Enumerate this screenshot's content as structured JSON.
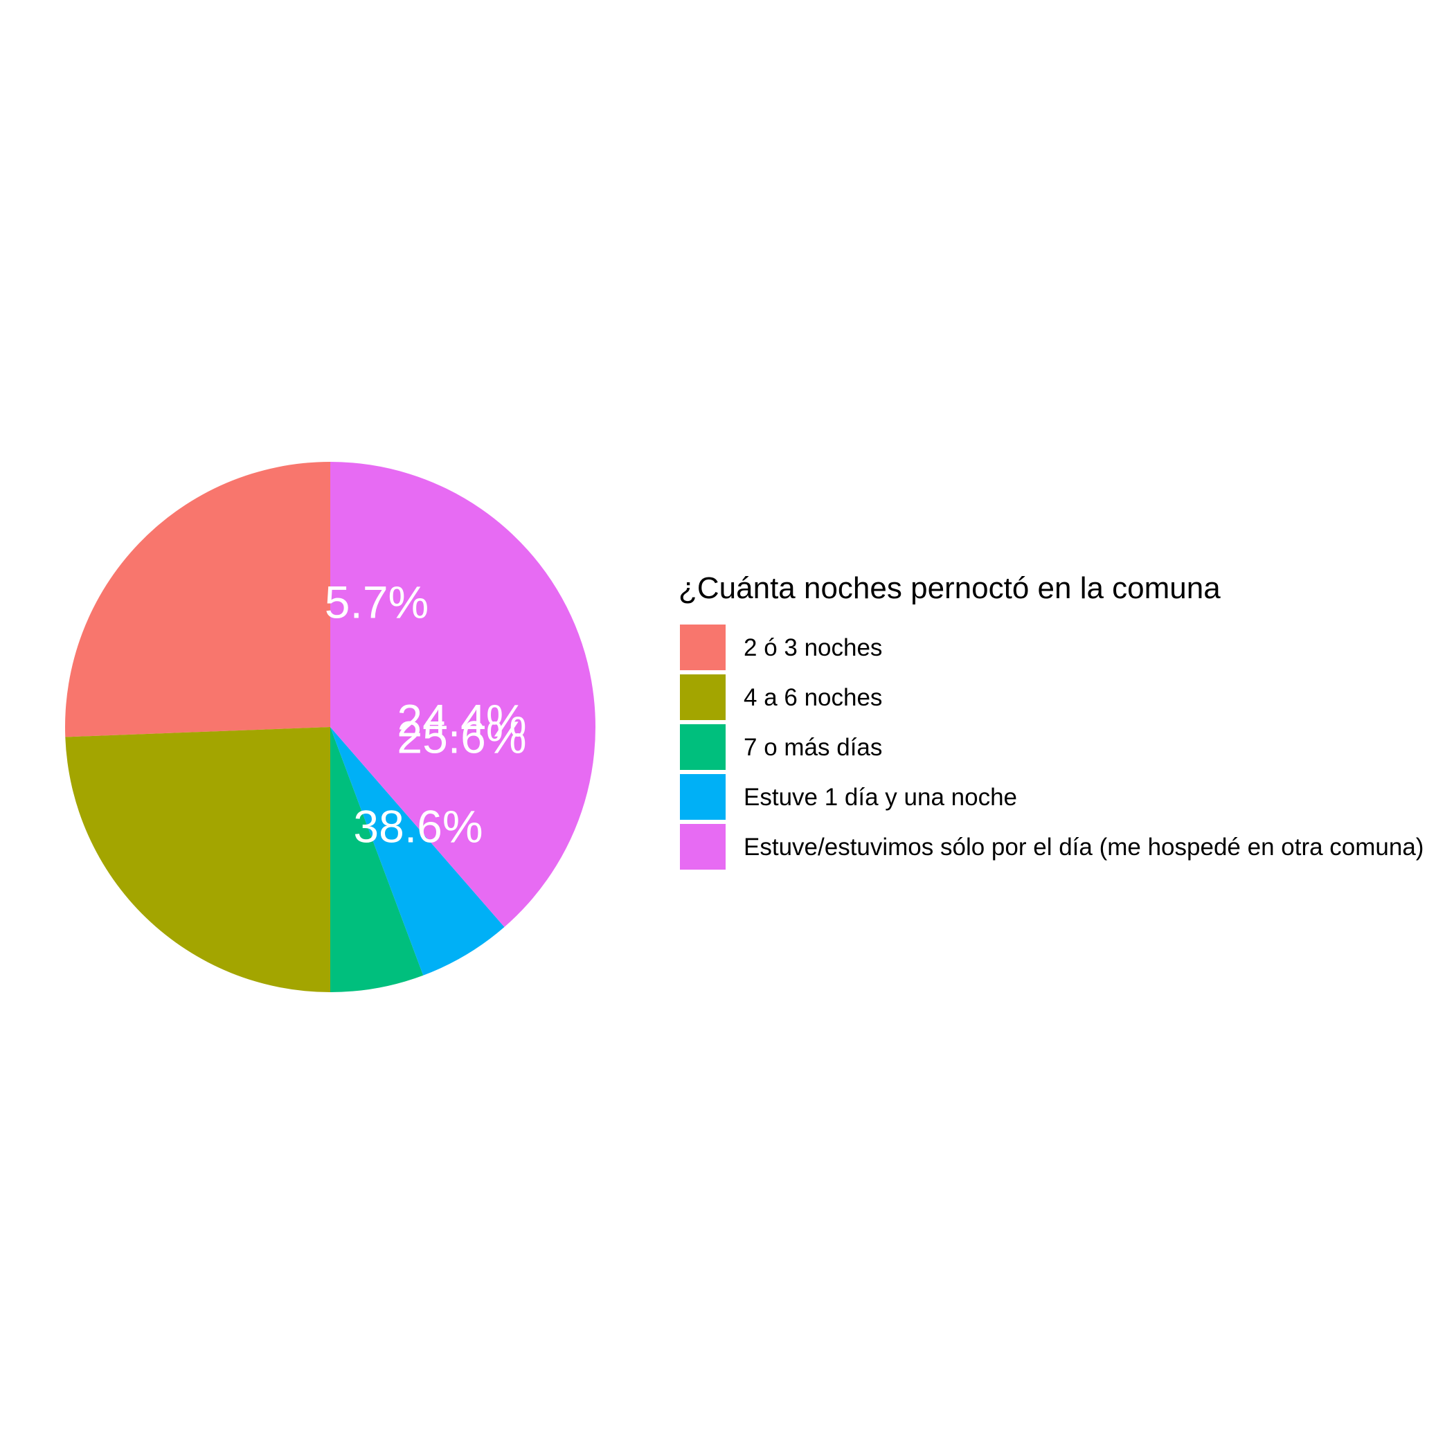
{
  "chart_data": {
    "type": "pie",
    "legend_title": "¿Cuánta noches pernoctó en la comuna",
    "legend_position": "right",
    "slices": [
      {
        "name": "2 ó 3 noches",
        "value": 25.6,
        "label": "25.6%",
        "color": "#F8766D"
      },
      {
        "name": "4 a 6 noches",
        "value": 24.4,
        "label": "24.4%",
        "color": "#A3A500"
      },
      {
        "name": "7 o más días",
        "value": 5.7,
        "label": "5.7%",
        "color": "#00BF7D"
      },
      {
        "name": "Estuve 1 día y una noche",
        "value": 5.7,
        "label": "5.7%",
        "color": "#00B0F6"
      },
      {
        "name": "Estuve/estuvimos sólo por el día (me hospedé en otra comuna)",
        "value": 38.6,
        "label": "38.6%",
        "color": "#E76BF3"
      }
    ],
    "value_labels": [
      "5.7%",
      "24.4%",
      "25.6%",
      "38.6%"
    ]
  }
}
